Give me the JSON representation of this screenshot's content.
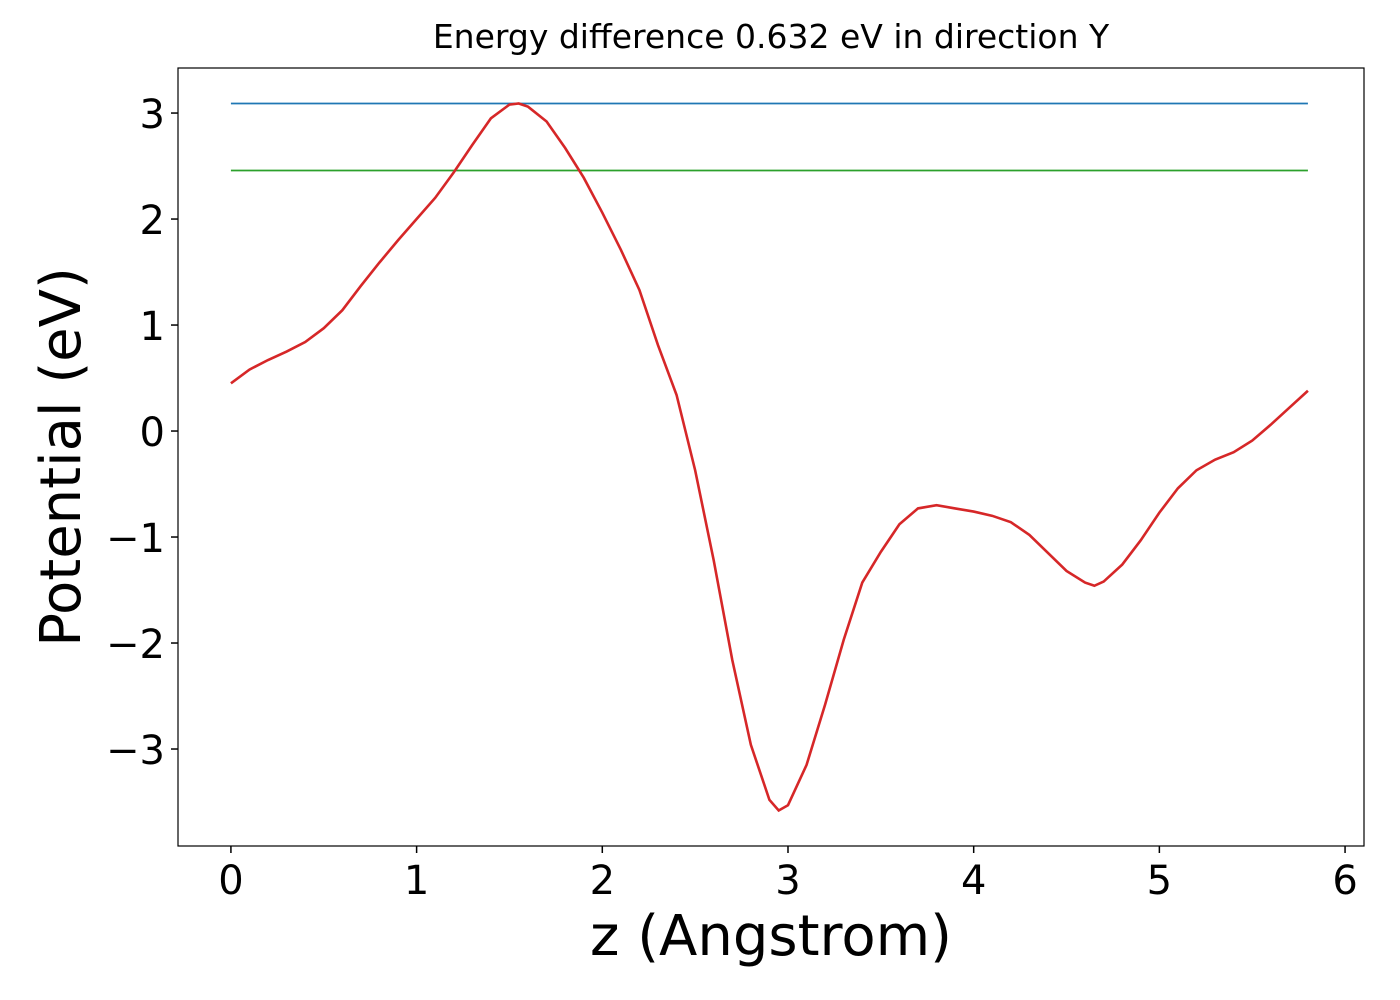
{
  "chart_data": {
    "type": "line",
    "title": "Energy difference 0.632 eV in direction Y",
    "xlabel": "z (Angstrom)",
    "ylabel": "Potential (eV)",
    "xlim": [
      -0.285,
      6.102
    ],
    "ylim": [
      -3.915,
      3.425
    ],
    "xticks": [
      0,
      1,
      2,
      3,
      4,
      5,
      6
    ],
    "yticks": [
      {
        "value": -3,
        "label": "−3"
      },
      {
        "value": -2,
        "label": "−2"
      },
      {
        "value": -1,
        "label": "−1"
      },
      0,
      1,
      2,
      3
    ],
    "series": [
      {
        "color": "#1f77b4",
        "x": [
          0,
          5.8
        ],
        "values": [
          3.09,
          3.09
        ]
      },
      {
        "color": "#2ca02c",
        "x": [
          0,
          5.8
        ],
        "values": [
          2.458,
          2.458
        ]
      },
      {
        "color": "#d62728",
        "x": [
          0,
          0.1,
          0.2,
          0.3,
          0.4,
          0.5,
          0.6,
          0.7,
          0.8,
          0.9,
          1.0,
          1.1,
          1.2,
          1.3,
          1.4,
          1.5,
          1.55,
          1.6,
          1.7,
          1.8,
          1.9,
          2.0,
          2.1,
          2.2,
          2.3,
          2.4,
          2.5,
          2.6,
          2.7,
          2.8,
          2.9,
          2.95,
          3.0,
          3.1,
          3.2,
          3.3,
          3.4,
          3.5,
          3.6,
          3.7,
          3.8,
          3.9,
          4.0,
          4.1,
          4.2,
          4.3,
          4.4,
          4.5,
          4.6,
          4.65,
          4.7,
          4.8,
          4.9,
          5.0,
          5.1,
          5.2,
          5.3,
          5.4,
          5.5,
          5.6,
          5.7,
          5.8
        ],
        "values": [
          0.45,
          0.58,
          0.67,
          0.75,
          0.84,
          0.97,
          1.14,
          1.37,
          1.59,
          1.8,
          2.0,
          2.2,
          2.44,
          2.7,
          2.95,
          3.08,
          3.09,
          3.06,
          2.92,
          2.67,
          2.39,
          2.06,
          1.71,
          1.33,
          0.81,
          0.34,
          -0.37,
          -1.22,
          -2.16,
          -2.96,
          -3.48,
          -3.58,
          -3.53,
          -3.15,
          -2.58,
          -1.97,
          -1.43,
          -1.14,
          -0.88,
          -0.73,
          -0.7,
          -0.73,
          -0.76,
          -0.8,
          -0.86,
          -0.98,
          -1.15,
          -1.32,
          -1.43,
          -1.46,
          -1.42,
          -1.26,
          -1.03,
          -0.77,
          -0.54,
          -0.37,
          -0.27,
          -0.2,
          -0.09,
          0.06,
          0.22,
          0.38
        ]
      }
    ]
  }
}
